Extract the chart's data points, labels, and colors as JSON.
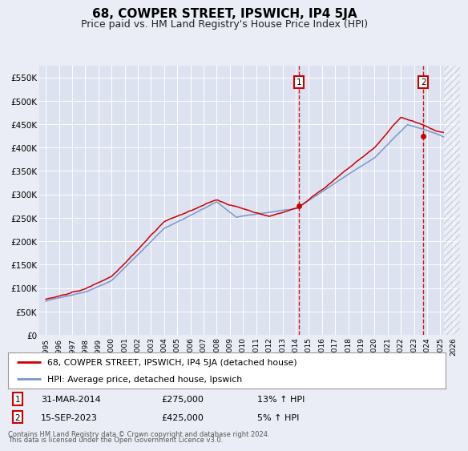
{
  "title": "68, COWPER STREET, IPSWICH, IP4 5JA",
  "subtitle": "Price paid vs. HM Land Registry's House Price Index (HPI)",
  "title_fontsize": 11,
  "subtitle_fontsize": 9,
  "ylim": [
    0,
    575000
  ],
  "yticks": [
    0,
    50000,
    100000,
    150000,
    200000,
    250000,
    300000,
    350000,
    400000,
    450000,
    500000,
    550000
  ],
  "ytick_labels": [
    "£0",
    "£50K",
    "£100K",
    "£150K",
    "£200K",
    "£250K",
    "£300K",
    "£350K",
    "£400K",
    "£450K",
    "£500K",
    "£550K"
  ],
  "background_color": "#eaedf5",
  "plot_bg_color": "#dde2f0",
  "red_line_color": "#cc0000",
  "blue_line_color": "#7799cc",
  "vline_color": "#cc0000",
  "marker_color": "#cc0000",
  "legend_line1": "68, COWPER STREET, IPSWICH, IP4 5JA (detached house)",
  "legend_line2": "HPI: Average price, detached house, Ipswich",
  "annotation1_date": "31-MAR-2014",
  "annotation1_price": "£275,000",
  "annotation1_hpi": "13% ↑ HPI",
  "annotation2_date": "15-SEP-2023",
  "annotation2_price": "£425,000",
  "annotation2_hpi": "5% ↑ HPI",
  "footer1": "Contains HM Land Registry data © Crown copyright and database right 2024.",
  "footer2": "This data is licensed under the Open Government Licence v3.0.",
  "point1_x": 2014.25,
  "point1_y": 275000,
  "point2_x": 2023.71,
  "point2_y": 425000,
  "xmin": 1994.5,
  "xmax": 2026.5,
  "hatch_start": 2025.3
}
